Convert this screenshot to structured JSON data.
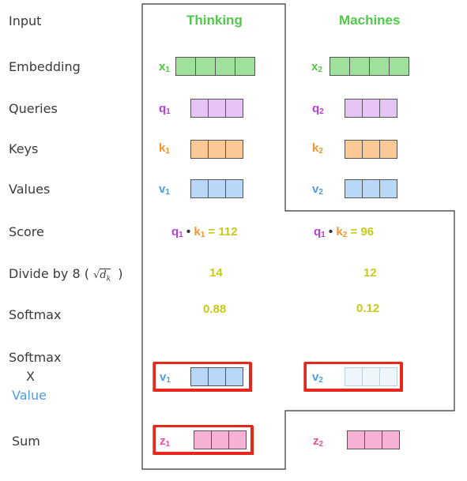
{
  "rows": {
    "input": "Input",
    "embedding": "Embedding",
    "queries": "Queries",
    "keys": "Keys",
    "values": "Values",
    "score": "Score",
    "divide_prefix": "Divide by 8 (",
    "divide_suffix": ")",
    "softmax": "Softmax",
    "softmax_x_value_line1": "Softmax",
    "softmax_x_value_line2": "X",
    "softmax_x_value_line3": "Value",
    "sum": "Sum"
  },
  "words": {
    "w1": "Thinking",
    "w2": "Machines"
  },
  "vars": {
    "x": "x",
    "q": "q",
    "k": "k",
    "v": "v",
    "z": "z",
    "sub1": "1",
    "sub2": "2"
  },
  "score": {
    "dot": "•",
    "eq": "=",
    "s1": "112",
    "s2": "96"
  },
  "divided": {
    "d1": "14",
    "d2": "12"
  },
  "softmax": {
    "p1": "0.88",
    "p2": "0.12"
  },
  "colors": {
    "word": "#4fc848",
    "x": "#4fc848",
    "q": "#b73fd6",
    "k": "#f59331",
    "v": "#4d9ddf",
    "z": "#ea4f97",
    "number": "#c9c917",
    "highlight": "#e6281c",
    "embedding_fill": "#9fe09a",
    "query_fill": "#e5c3f5",
    "key_fill": "#fbc995",
    "value_fill": "#b9d8f7",
    "value_faded_fill": "#eef5fc",
    "sum_fill": "#f6b1d6"
  }
}
